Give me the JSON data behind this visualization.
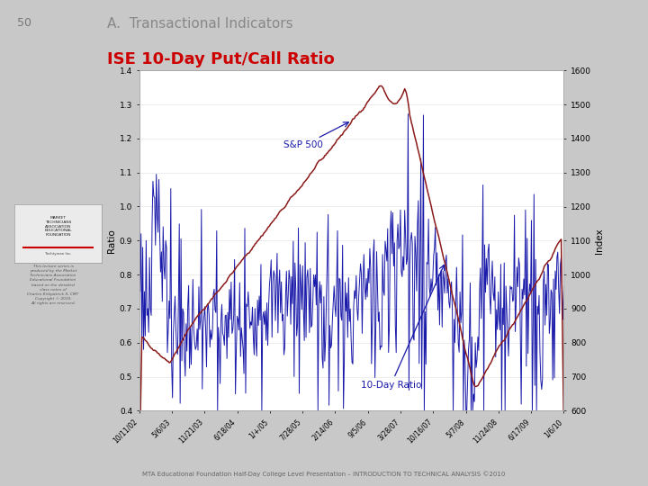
{
  "title_page_num": "50",
  "title_section": "A.  Transactional Indicators",
  "title_chart": "ISE 10-Day Put/Call Ratio",
  "ylabel_left": "Ratio",
  "ylabel_right": "Index",
  "left_ylim": [
    0.4,
    1.4
  ],
  "right_ylim": [
    600,
    1600
  ],
  "left_yticks": [
    0.4,
    0.5,
    0.6,
    0.7,
    0.8,
    0.9,
    1.0,
    1.1,
    1.2,
    1.3,
    1.4
  ],
  "right_yticks": [
    600,
    700,
    800,
    900,
    1000,
    1100,
    1200,
    1300,
    1400,
    1500,
    1600
  ],
  "bg_color": "#c8c8c8",
  "plot_bg_color": "#ffffff",
  "title_color_section": "#888888",
  "title_color_chart": "#cc0000",
  "line_color_ratio": "#1a1aaa",
  "line_color_sp500": "#8b1a1a",
  "annotation_sp500": "S&P 500",
  "annotation_ratio": "10-Day Ratio",
  "annotation_color": "#1a1aaa",
  "x_tick_labels": [
    "10/11/02",
    "5/6/03",
    "11/21/03",
    "6/18/04",
    "1/+/05",
    "7/28/05",
    "2/14/06",
    "9/5/06",
    "3/28/07",
    "10/16/07",
    "5/7/08",
    "11/24/08",
    "6/17/09",
    "1/6/10"
  ],
  "footer_text": "MTA Educational Foundation Half-Day College Level Presentation – INTRODUCTION TO TECHNICAL ANALYSIS ©2010"
}
